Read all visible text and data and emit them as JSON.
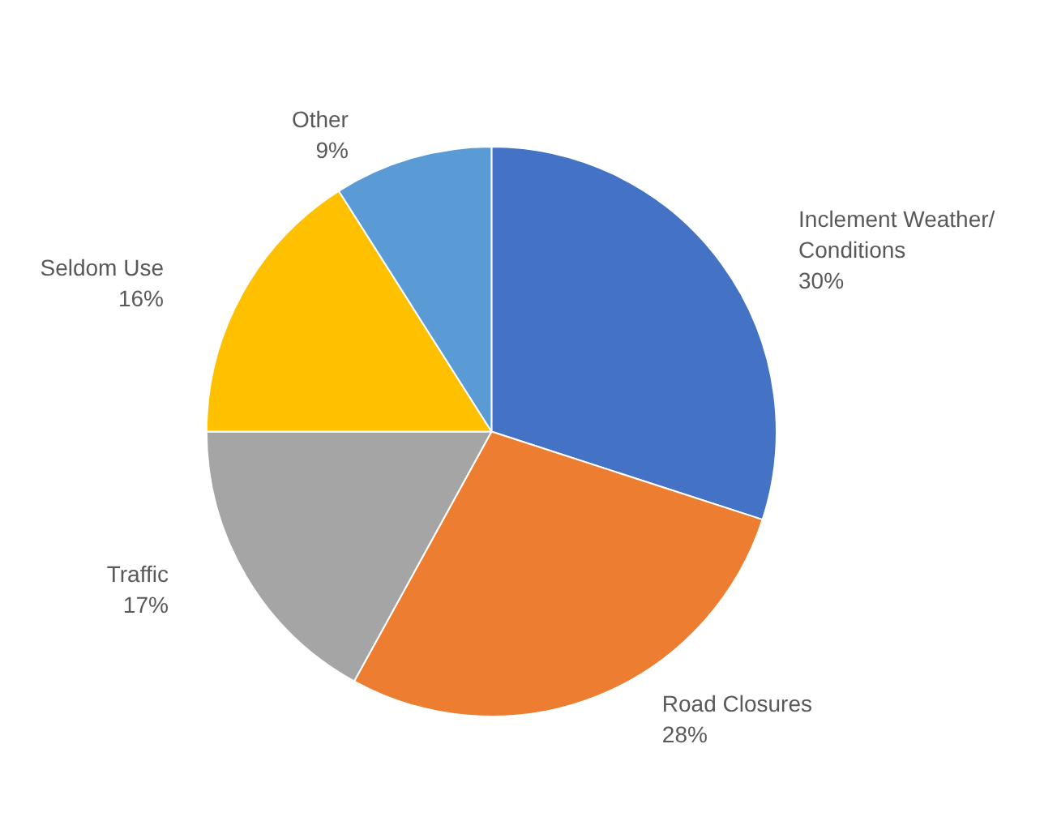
{
  "chart_data": {
    "type": "pie",
    "categories": [
      "Inclement Weather/Conditions",
      "Road Closures",
      "Traffic",
      "Seldom Use",
      "Other"
    ],
    "values": [
      30,
      28,
      17,
      16,
      9
    ],
    "value_labels": [
      "30%",
      "28%",
      "17%",
      "16%",
      "9%"
    ],
    "colors": [
      "#4472c4",
      "#ed7d31",
      "#a5a5a5",
      "#ffc000",
      "#5b9bd5"
    ],
    "legend": false
  }
}
